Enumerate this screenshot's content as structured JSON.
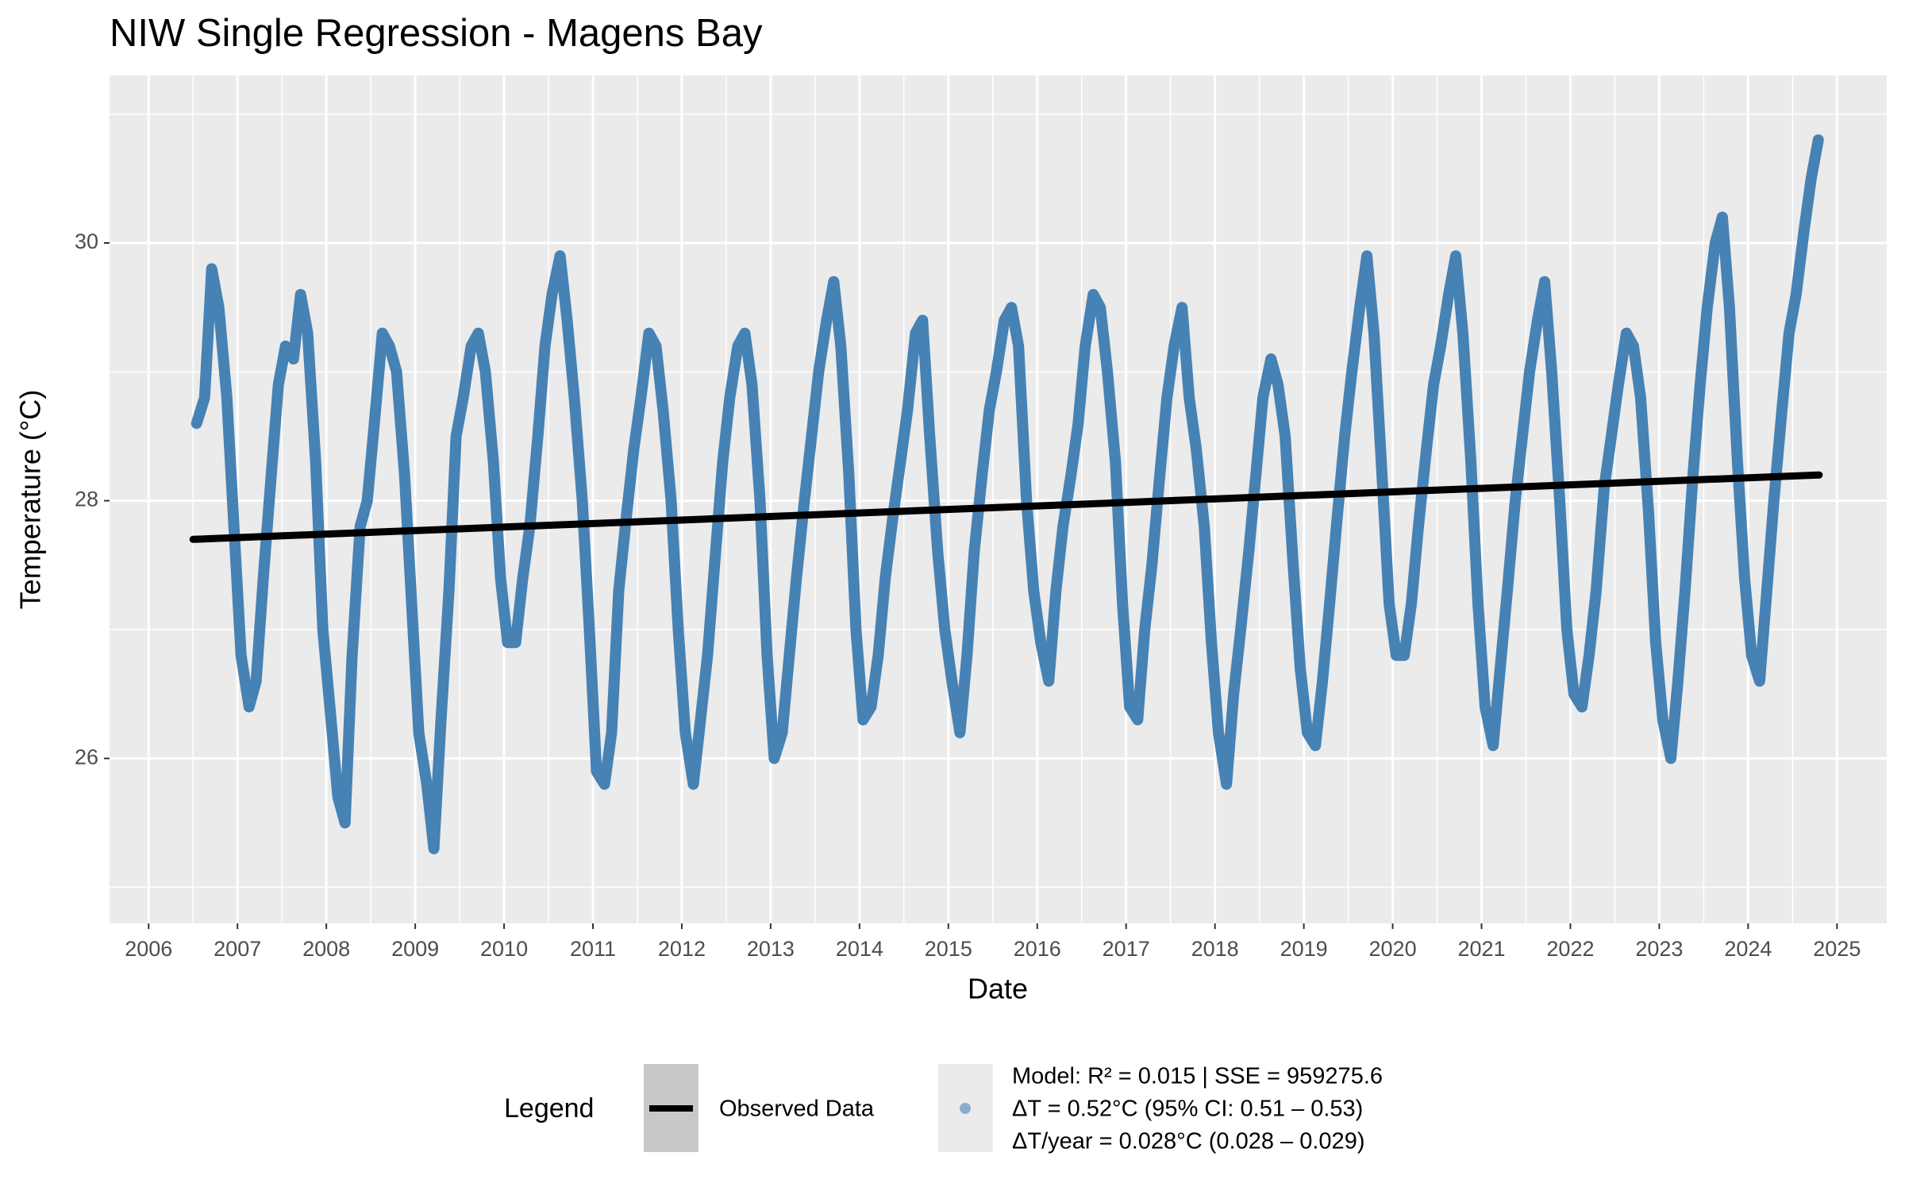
{
  "chart_data": {
    "type": "line",
    "title": "NIW Single Regression - Magens Bay",
    "x_label": "Date",
    "y_label": "Temperature (°C)",
    "xlim": [
      2005.56,
      2025.56
    ],
    "ylim": [
      24.72,
      31.3
    ],
    "xticks": [
      2006,
      2007,
      2008,
      2009,
      2010,
      2011,
      2012,
      2013,
      2014,
      2015,
      2016,
      2017,
      2018,
      2019,
      2020,
      2021,
      2022,
      2023,
      2024,
      2025
    ],
    "yticks": [
      26,
      28,
      30
    ],
    "grid": true,
    "legend_title": "Legend",
    "legend_position": "bottom",
    "series": [
      {
        "name": "Observed Data",
        "color": "#000000",
        "x": [
          2006.5,
          2024.8
        ],
        "values": [
          27.7,
          28.2
        ]
      },
      {
        "name": [
          "Model: R² = 0.015 | SSE = 959275.6",
          "ΔT = 0.52°C (95% CI: 0.51 – 0.53)",
          "ΔT/year = 0.028°C (0.028 – 0.029)"
        ],
        "color": "#4682b4",
        "x": [
          2006.54,
          2006.63,
          2006.71,
          2006.79,
          2006.88,
          2006.96,
          2007.04,
          2007.13,
          2007.21,
          2007.29,
          2007.38,
          2007.46,
          2007.54,
          2007.63,
          2007.71,
          2007.79,
          2007.88,
          2007.96,
          2008.04,
          2008.13,
          2008.21,
          2008.29,
          2008.38,
          2008.46,
          2008.54,
          2008.63,
          2008.71,
          2008.79,
          2008.88,
          2008.96,
          2009.04,
          2009.13,
          2009.21,
          2009.29,
          2009.38,
          2009.46,
          2009.54,
          2009.63,
          2009.71,
          2009.79,
          2009.88,
          2009.96,
          2010.04,
          2010.13,
          2010.21,
          2010.29,
          2010.38,
          2010.46,
          2010.54,
          2010.63,
          2010.71,
          2010.79,
          2010.88,
          2010.96,
          2011.04,
          2011.13,
          2011.21,
          2011.29,
          2011.38,
          2011.46,
          2011.54,
          2011.63,
          2011.71,
          2011.79,
          2011.88,
          2011.96,
          2012.04,
          2012.13,
          2012.21,
          2012.29,
          2012.38,
          2012.46,
          2012.54,
          2012.63,
          2012.71,
          2012.79,
          2012.88,
          2012.96,
          2013.04,
          2013.13,
          2013.21,
          2013.29,
          2013.38,
          2013.46,
          2013.54,
          2013.63,
          2013.71,
          2013.79,
          2013.88,
          2013.96,
          2014.04,
          2014.13,
          2014.21,
          2014.29,
          2014.38,
          2014.46,
          2014.54,
          2014.63,
          2014.71,
          2014.79,
          2014.88,
          2014.96,
          2015.04,
          2015.13,
          2015.21,
          2015.29,
          2015.38,
          2015.46,
          2015.54,
          2015.63,
          2015.71,
          2015.79,
          2015.88,
          2015.96,
          2016.04,
          2016.13,
          2016.21,
          2016.29,
          2016.38,
          2016.46,
          2016.54,
          2016.63,
          2016.71,
          2016.79,
          2016.88,
          2016.96,
          2017.04,
          2017.13,
          2017.21,
          2017.29,
          2017.38,
          2017.46,
          2017.54,
          2017.63,
          2017.71,
          2017.79,
          2017.88,
          2017.96,
          2018.04,
          2018.13,
          2018.21,
          2018.29,
          2018.38,
          2018.46,
          2018.54,
          2018.63,
          2018.71,
          2018.79,
          2018.88,
          2018.96,
          2019.04,
          2019.13,
          2019.21,
          2019.29,
          2019.38,
          2019.46,
          2019.54,
          2019.63,
          2019.71,
          2019.79,
          2019.88,
          2019.96,
          2020.04,
          2020.13,
          2020.21,
          2020.29,
          2020.38,
          2020.46,
          2020.54,
          2020.63,
          2020.71,
          2020.79,
          2020.88,
          2020.96,
          2021.04,
          2021.13,
          2021.21,
          2021.29,
          2021.38,
          2021.46,
          2021.54,
          2021.63,
          2021.71,
          2021.79,
          2021.88,
          2021.96,
          2022.04,
          2022.13,
          2022.21,
          2022.29,
          2022.38,
          2022.46,
          2022.54,
          2022.63,
          2022.71,
          2022.79,
          2022.88,
          2022.96,
          2023.04,
          2023.13,
          2023.21,
          2023.29,
          2023.38,
          2023.46,
          2023.54,
          2023.63,
          2023.71,
          2023.79,
          2023.88,
          2023.96,
          2024.04,
          2024.13,
          2024.21,
          2024.29,
          2024.38,
          2024.46,
          2024.54,
          2024.63,
          2024.71,
          2024.79
        ],
        "values": [
          28.6,
          28.8,
          29.8,
          29.5,
          28.8,
          27.8,
          26.8,
          26.4,
          26.6,
          27.4,
          28.2,
          28.9,
          29.2,
          29.1,
          29.6,
          29.3,
          28.3,
          27.0,
          26.4,
          25.7,
          25.5,
          26.8,
          27.8,
          28.0,
          28.6,
          29.3,
          29.2,
          29.0,
          28.2,
          27.2,
          26.2,
          25.8,
          25.3,
          26.3,
          27.3,
          28.5,
          28.8,
          29.2,
          29.3,
          29.0,
          28.3,
          27.4,
          26.9,
          26.9,
          27.4,
          27.8,
          28.5,
          29.2,
          29.6,
          29.9,
          29.4,
          28.8,
          28.0,
          27.0,
          25.9,
          25.8,
          26.2,
          27.3,
          27.9,
          28.4,
          28.8,
          29.3,
          29.2,
          28.7,
          28.0,
          27.0,
          26.2,
          25.8,
          26.3,
          26.8,
          27.6,
          28.3,
          28.8,
          29.2,
          29.3,
          28.9,
          28.0,
          26.8,
          26.0,
          26.2,
          26.8,
          27.4,
          28.0,
          28.5,
          29.0,
          29.4,
          29.7,
          29.2,
          28.2,
          27.0,
          26.3,
          26.4,
          26.8,
          27.4,
          27.9,
          28.3,
          28.7,
          29.3,
          29.4,
          28.5,
          27.6,
          27.0,
          26.6,
          26.2,
          26.8,
          27.6,
          28.2,
          28.7,
          29.0,
          29.4,
          29.5,
          29.2,
          28.0,
          27.3,
          26.9,
          26.6,
          27.3,
          27.8,
          28.2,
          28.6,
          29.2,
          29.6,
          29.5,
          29.0,
          28.3,
          27.2,
          26.4,
          26.3,
          27.0,
          27.5,
          28.2,
          28.8,
          29.2,
          29.5,
          28.8,
          28.4,
          27.8,
          26.9,
          26.2,
          25.8,
          26.5,
          27.0,
          27.6,
          28.2,
          28.8,
          29.1,
          28.9,
          28.5,
          27.5,
          26.7,
          26.2,
          26.1,
          26.6,
          27.2,
          27.9,
          28.5,
          29.0,
          29.5,
          29.9,
          29.3,
          28.2,
          27.2,
          26.8,
          26.8,
          27.2,
          27.8,
          28.4,
          28.9,
          29.2,
          29.6,
          29.9,
          29.3,
          28.3,
          27.2,
          26.4,
          26.1,
          26.7,
          27.3,
          28.0,
          28.5,
          29.0,
          29.4,
          29.7,
          29.0,
          28.0,
          27.0,
          26.5,
          26.4,
          26.8,
          27.3,
          28.1,
          28.5,
          28.9,
          29.3,
          29.2,
          28.8,
          27.9,
          26.9,
          26.3,
          26.0,
          26.6,
          27.3,
          28.2,
          28.9,
          29.5,
          30.0,
          30.2,
          29.5,
          28.3,
          27.4,
          26.8,
          26.6,
          27.3,
          28.0,
          28.7,
          29.3,
          29.6,
          30.1,
          30.5,
          30.8
        ]
      }
    ]
  }
}
